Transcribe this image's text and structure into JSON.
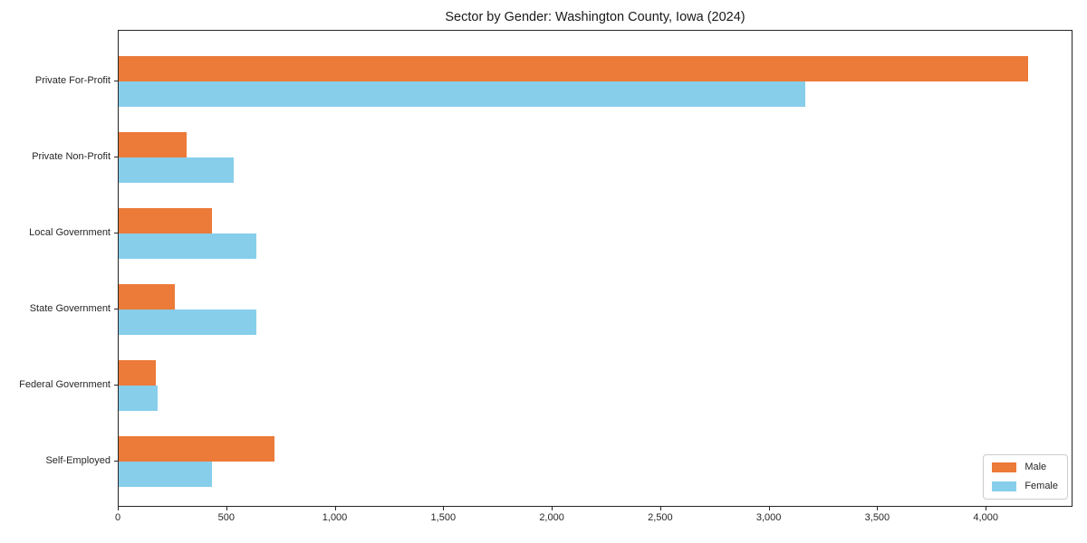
{
  "chart_data": {
    "type": "bar",
    "orientation": "horizontal",
    "title": "Sector by Gender: Washington County, Iowa (2024)",
    "categories": [
      "Private For-Profit",
      "Private Non-Profit",
      "Local Government",
      "State Government",
      "Federal Government",
      "Self-Employed"
    ],
    "series": [
      {
        "name": "Male",
        "color": "#ec7a39",
        "values": [
          4200,
          315,
          430,
          260,
          170,
          720
        ]
      },
      {
        "name": "Female",
        "color": "#87ceeb",
        "values": [
          3170,
          530,
          635,
          635,
          180,
          430
        ]
      }
    ],
    "xlabel": "",
    "ylabel": "",
    "xlim": [
      0,
      4400
    ],
    "xticks": [
      0,
      500,
      1000,
      1500,
      2000,
      2500,
      3000,
      3500,
      4000
    ],
    "xtick_labels": [
      "0",
      "500",
      "1,000",
      "1,500",
      "2,000",
      "2,500",
      "3,000",
      "3,500",
      "4,000"
    ],
    "grid": false,
    "legend_position": "lower right",
    "axis_color": "#262626",
    "background_color": "#ffffff"
  }
}
